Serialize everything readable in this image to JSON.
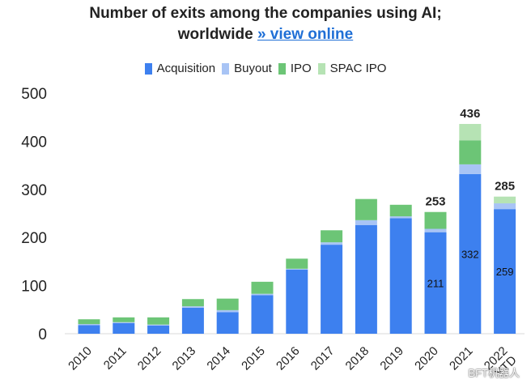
{
  "title_line1": "Number of exits among the companies using AI;",
  "title_line2": "worldwide",
  "view_link": "» view online",
  "watermark": "BFT机器人",
  "colors": {
    "acquisition": "#3d80ef",
    "buyout": "#a8c4f5",
    "ipo": "#6cc576",
    "spac_ipo": "#b6e3b4"
  },
  "chart_data": {
    "type": "bar",
    "stacked": true,
    "categories": [
      "2010",
      "2011",
      "2012",
      "2013",
      "2014",
      "2015",
      "2016",
      "2017",
      "2018",
      "2019",
      "2020",
      "2021",
      "2022 YTD"
    ],
    "series": [
      {
        "name": "Acquisition",
        "key": "acquisition",
        "values": [
          18,
          22,
          17,
          54,
          45,
          80,
          133,
          185,
          226,
          240,
          211,
          332,
          259
        ]
      },
      {
        "name": "Buyout",
        "key": "buyout",
        "values": [
          2,
          2,
          2,
          3,
          4,
          3,
          2,
          5,
          10,
          4,
          7,
          20,
          12
        ]
      },
      {
        "name": "IPO",
        "key": "ipo",
        "values": [
          10,
          10,
          15,
          15,
          24,
          25,
          21,
          25,
          44,
          24,
          35,
          50,
          0
        ]
      },
      {
        "name": "SPAC IPO",
        "key": "spac_ipo",
        "values": [
          0,
          0,
          0,
          0,
          0,
          0,
          0,
          0,
          0,
          0,
          0,
          34,
          14
        ]
      }
    ],
    "totals_labels": [
      {
        "index": 10,
        "text": "253"
      },
      {
        "index": 11,
        "text": "436"
      },
      {
        "index": 12,
        "text": "285"
      }
    ],
    "inner_labels": [
      {
        "index": 10,
        "text": "211"
      },
      {
        "index": 11,
        "text": "332"
      },
      {
        "index": 12,
        "text": "259"
      }
    ],
    "ylim": [
      0,
      500
    ],
    "yticks": [
      0,
      100,
      200,
      300,
      400,
      500
    ],
    "grid": false,
    "legend_position": "top-center"
  }
}
